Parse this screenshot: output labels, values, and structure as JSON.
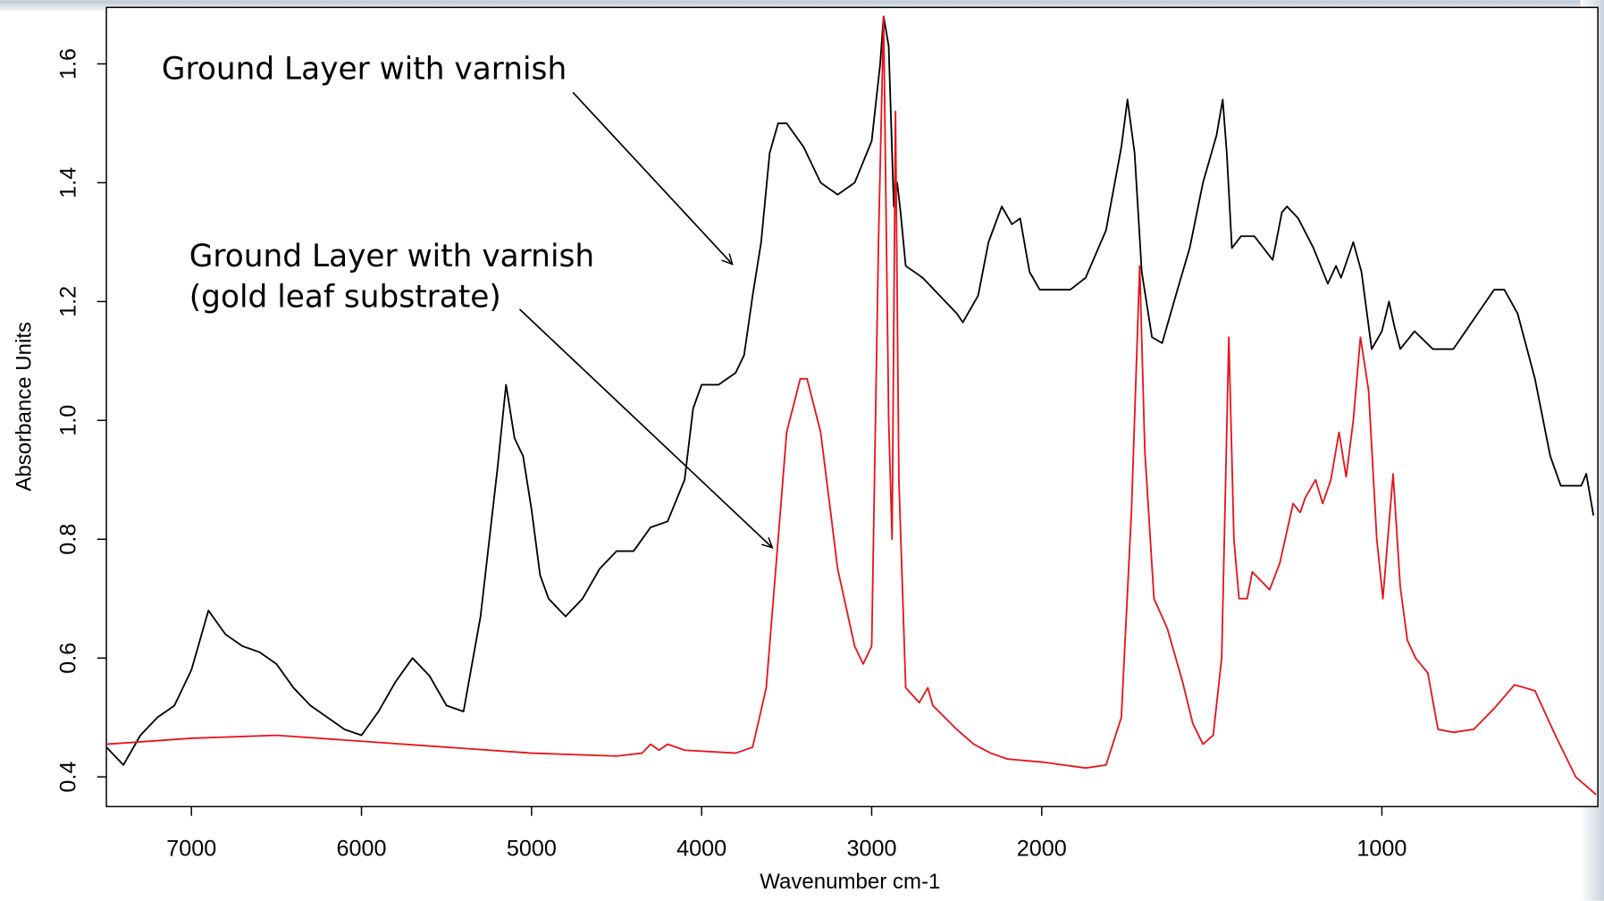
{
  "chart_data": {
    "type": "line",
    "xlabel": "Wavenumber cm-1",
    "ylabel": "Absorbance Units",
    "annotations": [
      "Ground Layer with varnish",
      "Ground Layer with varnish",
      "(gold leaf substrate)"
    ],
    "xlim": [
      7500,
      365
    ],
    "x_reversed": true,
    "x_break": {
      "at": 2000,
      "scale": 2
    },
    "xticks": [
      7000,
      6000,
      5000,
      4000,
      3000,
      2000,
      1000
    ],
    "ylim": [
      0.35,
      1.695
    ],
    "yticks": [
      0.4,
      0.6,
      0.8,
      {
        "value": 1,
        "label": "1.0"
      },
      1.2,
      1.4,
      1.6
    ],
    "series": [
      {
        "color": "#000000",
        "x": [
          7500,
          7400,
          7300,
          7200,
          7100,
          7000,
          6900,
          6800,
          6700,
          6600,
          6500,
          6400,
          6300,
          6200,
          6100,
          6000,
          5900,
          5800,
          5700,
          5600,
          5500,
          5400,
          5300,
          5200,
          5150,
          5100,
          5050,
          5000,
          4950,
          4900,
          4800,
          4700,
          4600,
          4500,
          4400,
          4300,
          4200,
          4100,
          4050,
          4000,
          3900,
          3800,
          3750,
          3700,
          3650,
          3600,
          3550,
          3500,
          3400,
          3300,
          3200,
          3100,
          3000,
          2950,
          2930,
          2900,
          2870,
          2850,
          2830,
          2800,
          2700,
          2600,
          2500,
          2464,
          2374,
          2313,
          2235,
          2175,
          2127,
          2072,
          2012,
          1916,
          1871,
          1811,
          1766,
          1748,
          1727,
          1706,
          1676,
          1646,
          1601,
          1565,
          1526,
          1486,
          1468,
          1456,
          1441,
          1414,
          1375,
          1321,
          1294,
          1279,
          1246,
          1201,
          1159,
          1135,
          1120,
          1084,
          1060,
          1030,
          1000,
          979,
          964,
          946,
          904,
          850,
          790,
          730,
          670,
          640,
          601,
          550,
          505,
          474,
          414,
          399,
          378
        ],
        "values": [
          0.45,
          0.42,
          0.47,
          0.5,
          0.52,
          0.58,
          0.68,
          0.64,
          0.62,
          0.61,
          0.59,
          0.55,
          0.52,
          0.5,
          0.48,
          0.47,
          0.51,
          0.56,
          0.6,
          0.57,
          0.52,
          0.51,
          0.67,
          0.92,
          1.06,
          0.97,
          0.94,
          0.85,
          0.74,
          0.7,
          0.67,
          0.7,
          0.75,
          0.78,
          0.78,
          0.82,
          0.83,
          0.9,
          1.02,
          1.06,
          1.06,
          1.08,
          1.11,
          1.21,
          1.3,
          1.45,
          1.5,
          1.5,
          1.46,
          1.4,
          1.38,
          1.4,
          1.47,
          1.6,
          1.68,
          1.63,
          1.36,
          1.4,
          1.35,
          1.26,
          1.24,
          1.21,
          1.18,
          1.165,
          1.21,
          1.3,
          1.36,
          1.33,
          1.34,
          1.25,
          1.22,
          1.22,
          1.24,
          1.32,
          1.46,
          1.54,
          1.45,
          1.25,
          1.14,
          1.13,
          1.22,
          1.29,
          1.4,
          1.48,
          1.54,
          1.45,
          1.29,
          1.31,
          1.31,
          1.27,
          1.35,
          1.36,
          1.34,
          1.29,
          1.23,
          1.26,
          1.24,
          1.3,
          1.25,
          1.12,
          1.15,
          1.2,
          1.16,
          1.12,
          1.15,
          1.12,
          1.12,
          1.17,
          1.22,
          1.22,
          1.18,
          1.07,
          0.94,
          0.89,
          0.89,
          0.91,
          0.84
        ]
      },
      {
        "color": "#e8141b",
        "x": [
          7500,
          7000,
          6500,
          6000,
          5500,
          5000,
          4500,
          4350,
          4300,
          4250,
          4200,
          4100,
          3800,
          3700,
          3620,
          3550,
          3500,
          3420,
          3380,
          3300,
          3200,
          3100,
          3050,
          3000,
          2960,
          2930,
          2900,
          2880,
          2860,
          2840,
          2800,
          2720,
          2670,
          2640,
          2500,
          2400,
          2300,
          2200,
          2000,
          1871,
          1811,
          1766,
          1736,
          1712,
          1697,
          1670,
          1631,
          1586,
          1556,
          1526,
          1496,
          1471,
          1450,
          1435,
          1420,
          1396,
          1381,
          1330,
          1300,
          1261,
          1240,
          1225,
          1195,
          1174,
          1150,
          1126,
          1105,
          1084,
          1063,
          1039,
          1015,
          997,
          967,
          946,
          925,
          901,
          865,
          835,
          790,
          730,
          670,
          610,
          550,
          490,
          430,
          370
        ],
        "values": [
          0.455,
          0.465,
          0.47,
          0.46,
          0.45,
          0.44,
          0.435,
          0.44,
          0.455,
          0.445,
          0.455,
          0.445,
          0.44,
          0.45,
          0.55,
          0.8,
          0.98,
          1.07,
          1.07,
          0.98,
          0.75,
          0.62,
          0.59,
          0.62,
          1.3,
          1.68,
          1.0,
          0.8,
          1.52,
          0.9,
          0.55,
          0.525,
          0.55,
          0.52,
          0.48,
          0.455,
          0.44,
          0.43,
          0.425,
          0.415,
          0.42,
          0.5,
          0.85,
          1.26,
          0.95,
          0.7,
          0.65,
          0.56,
          0.49,
          0.455,
          0.47,
          0.6,
          1.14,
          0.8,
          0.7,
          0.7,
          0.745,
          0.715,
          0.76,
          0.86,
          0.845,
          0.87,
          0.9,
          0.86,
          0.9,
          0.98,
          0.905,
          1.0,
          1.14,
          1.05,
          0.8,
          0.7,
          0.91,
          0.72,
          0.63,
          0.6,
          0.575,
          0.48,
          0.475,
          0.48,
          0.515,
          0.555,
          0.545,
          0.47,
          0.4,
          0.37
        ]
      }
    ]
  }
}
